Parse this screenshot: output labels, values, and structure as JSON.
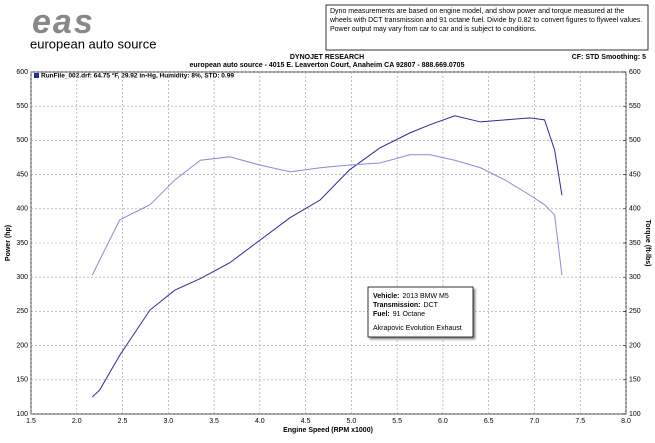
{
  "logo": {
    "mark": "eas",
    "name": "european auto source"
  },
  "disclaimer": "Dyno measurements are based on engine model, and show power and torque measured at the wheels with DCT transmission and 91 octane fuel. Divide by 0.82 to convert figures to flyweel values. Power output may vary from car to car and is subject to conditions.",
  "chart_data": {
    "type": "line",
    "title": "DYNOJET RESEARCH",
    "subtitle": "european auto source - 4015 E. Leaverton Court, Anaheim CA 92807 - 888.669.0705",
    "settings_label": "CF: STD  Smoothing: 5",
    "legend_label": "RunFile_002.drf: 64.75 °F, 29.92 in-Hg, Humidity: 8%, STD: 0.99",
    "xlabel": "Engine Speed (RPM x1000)",
    "ylabel": "Power (hp)",
    "y2label": "Torque (ft-lbs)",
    "xlim": [
      1.5,
      8.0
    ],
    "xticks": [
      {
        "value": 1.5,
        "label": "1.5"
      },
      {
        "value": 2,
        "label": "2.0"
      },
      {
        "value": 2.5,
        "label": "2.5"
      },
      {
        "value": 3,
        "label": "3.0"
      },
      {
        "value": 3.5,
        "label": "3.5"
      },
      {
        "value": 4,
        "label": "4.0"
      },
      {
        "value": 4.5,
        "label": "4.5"
      },
      {
        "value": 5,
        "label": "5.0"
      },
      {
        "value": 5.5,
        "label": "5.5"
      },
      {
        "value": 6,
        "label": "6.0"
      },
      {
        "value": 6.5,
        "label": "6.5"
      },
      {
        "value": 7,
        "label": "7.0"
      },
      {
        "value": 7.5,
        "label": "7.5"
      },
      {
        "value": 8,
        "label": "8.0"
      }
    ],
    "ylim": [
      100,
      600
    ],
    "yticks": [
      100,
      150,
      200,
      250,
      300,
      350,
      400,
      450,
      500,
      550,
      600
    ],
    "y2lim": [
      100,
      600
    ],
    "y2ticks": [
      100,
      150,
      200,
      250,
      300,
      350,
      400,
      450,
      500,
      550,
      600
    ],
    "grid": true,
    "x": [
      2.17,
      2.25,
      2.47,
      2.8,
      3.07,
      3.35,
      3.67,
      4.0,
      4.33,
      4.66,
      4.98,
      5.31,
      5.64,
      5.86,
      6.13,
      6.41,
      6.68,
      6.95,
      7.11,
      7.22,
      7.3
    ],
    "series": [
      {
        "name": "Power",
        "color": "#2a2aa0",
        "values": [
          125,
          135,
          186,
          252,
          281,
          298,
          321,
          354,
          387,
          413,
          457,
          489,
          511,
          523,
          536,
          527,
          530,
          533,
          530,
          486,
          420
        ]
      },
      {
        "name": "Torque",
        "color": "#8a8ad8",
        "axis": "y2",
        "values": [
          303,
          325,
          384,
          406,
          442,
          471,
          476,
          464,
          454,
          460,
          464,
          467,
          479,
          479,
          471,
          460,
          442,
          420,
          406,
          391,
          303
        ]
      }
    ],
    "annotation": {
      "lines": [
        {
          "label": "Vehicle:",
          "value": "2013 BMW M5"
        },
        {
          "label": "Transmission:",
          "value": "DCT"
        },
        {
          "label": "Fuel:",
          "value": "91 Octane"
        }
      ],
      "note": "Akrapovic Evolution Exhaust"
    }
  }
}
